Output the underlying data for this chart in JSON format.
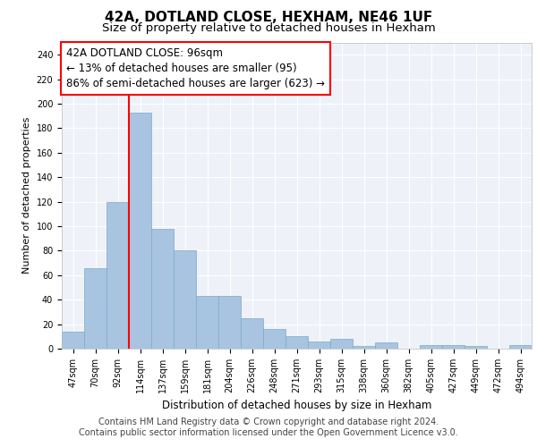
{
  "title1": "42A, DOTLAND CLOSE, HEXHAM, NE46 1UF",
  "title2": "Size of property relative to detached houses in Hexham",
  "xlabel": "Distribution of detached houses by size in Hexham",
  "ylabel": "Number of detached properties",
  "categories": [
    "47sqm",
    "70sqm",
    "92sqm",
    "114sqm",
    "137sqm",
    "159sqm",
    "181sqm",
    "204sqm",
    "226sqm",
    "248sqm",
    "271sqm",
    "293sqm",
    "315sqm",
    "338sqm",
    "360sqm",
    "382sqm",
    "405sqm",
    "427sqm",
    "449sqm",
    "472sqm",
    "494sqm"
  ],
  "values": [
    14,
    66,
    120,
    193,
    98,
    80,
    43,
    43,
    25,
    16,
    10,
    6,
    8,
    2,
    5,
    0,
    3,
    3,
    2,
    0,
    3
  ],
  "bar_color": "#a8c4e0",
  "bar_edge_color": "#7aaac8",
  "annotation_text": "42A DOTLAND CLOSE: 96sqm\n← 13% of detached houses are smaller (95)\n86% of semi-detached houses are larger (623) →",
  "annotation_box_color": "white",
  "annotation_box_edge": "red",
  "vline_color": "red",
  "vline_x": 2.5,
  "ylim": [
    0,
    250
  ],
  "yticks": [
    0,
    20,
    40,
    60,
    80,
    100,
    120,
    140,
    160,
    180,
    200,
    220,
    240
  ],
  "background_color": "#eef2f8",
  "grid_color": "white",
  "footer1": "Contains HM Land Registry data © Crown copyright and database right 2024.",
  "footer2": "Contains public sector information licensed under the Open Government Licence v3.0.",
  "title1_fontsize": 11,
  "title2_fontsize": 9.5,
  "annotation_fontsize": 8.5,
  "footer_fontsize": 7,
  "ylabel_fontsize": 8,
  "xlabel_fontsize": 8.5,
  "tick_fontsize": 7
}
